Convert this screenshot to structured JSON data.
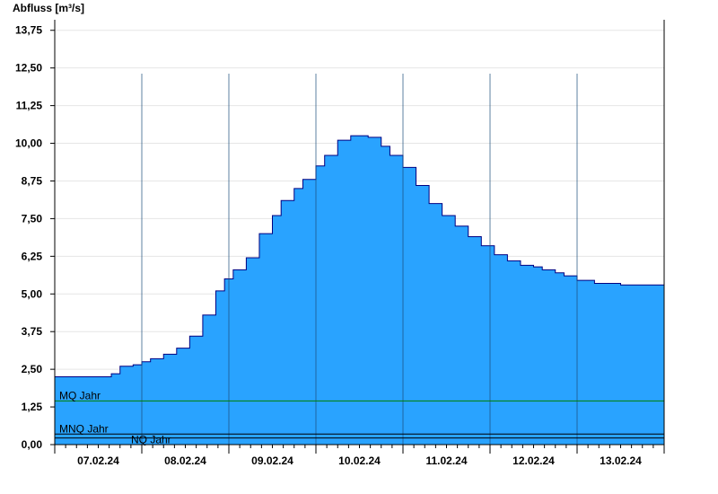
{
  "chart_data": {
    "type": "area",
    "ylabel": "Abfluss [m³/s]",
    "ylim": [
      0,
      14.1
    ],
    "y_ticks": [
      "0,00",
      "1,25",
      "2,50",
      "3,75",
      "5,00",
      "6,25",
      "7,50",
      "8,75",
      "10,00",
      "11,25",
      "12,50",
      "13,75"
    ],
    "x_categories": [
      "07.02.24",
      "08.02.24",
      "09.02.24",
      "10.02.24",
      "11.02.24",
      "12.02.24",
      "13.02.24"
    ],
    "x_range_days": [
      0,
      7
    ],
    "grid": true,
    "series": [
      {
        "color": "#29a3ff",
        "edge_color": "#000080",
        "step": true,
        "x_days": [
          0.0,
          0.3,
          0.5,
          0.65,
          0.75,
          0.9,
          1.0,
          1.1,
          1.25,
          1.4,
          1.55,
          1.7,
          1.85,
          1.95,
          2.05,
          2.2,
          2.35,
          2.5,
          2.6,
          2.75,
          2.85,
          3.0,
          3.1,
          3.25,
          3.4,
          3.5,
          3.6,
          3.75,
          3.85,
          4.0,
          4.15,
          4.3,
          4.45,
          4.6,
          4.75,
          4.9,
          5.05,
          5.2,
          5.35,
          5.5,
          5.6,
          5.75,
          5.85,
          6.0,
          6.2,
          6.5,
          7.0
        ],
        "values": [
          2.25,
          2.25,
          2.25,
          2.35,
          2.6,
          2.65,
          2.75,
          2.85,
          3.0,
          3.2,
          3.6,
          4.3,
          5.1,
          5.5,
          5.8,
          6.2,
          7.0,
          7.6,
          8.1,
          8.5,
          8.8,
          9.25,
          9.6,
          10.1,
          10.25,
          10.25,
          10.2,
          9.9,
          9.6,
          9.2,
          8.6,
          8.0,
          7.6,
          7.25,
          6.9,
          6.6,
          6.3,
          6.1,
          5.95,
          5.9,
          5.8,
          5.7,
          5.6,
          5.45,
          5.35,
          5.3,
          5.3
        ]
      }
    ],
    "reference_lines": [
      {
        "label": "MQ Jahr",
        "value": 1.45,
        "color": "#008000"
      },
      {
        "label": "MNQ Jahr",
        "value": 0.35,
        "color": "#000000"
      },
      {
        "label": "NQ Jahr",
        "value": 0.22,
        "color": "#000000"
      }
    ]
  }
}
